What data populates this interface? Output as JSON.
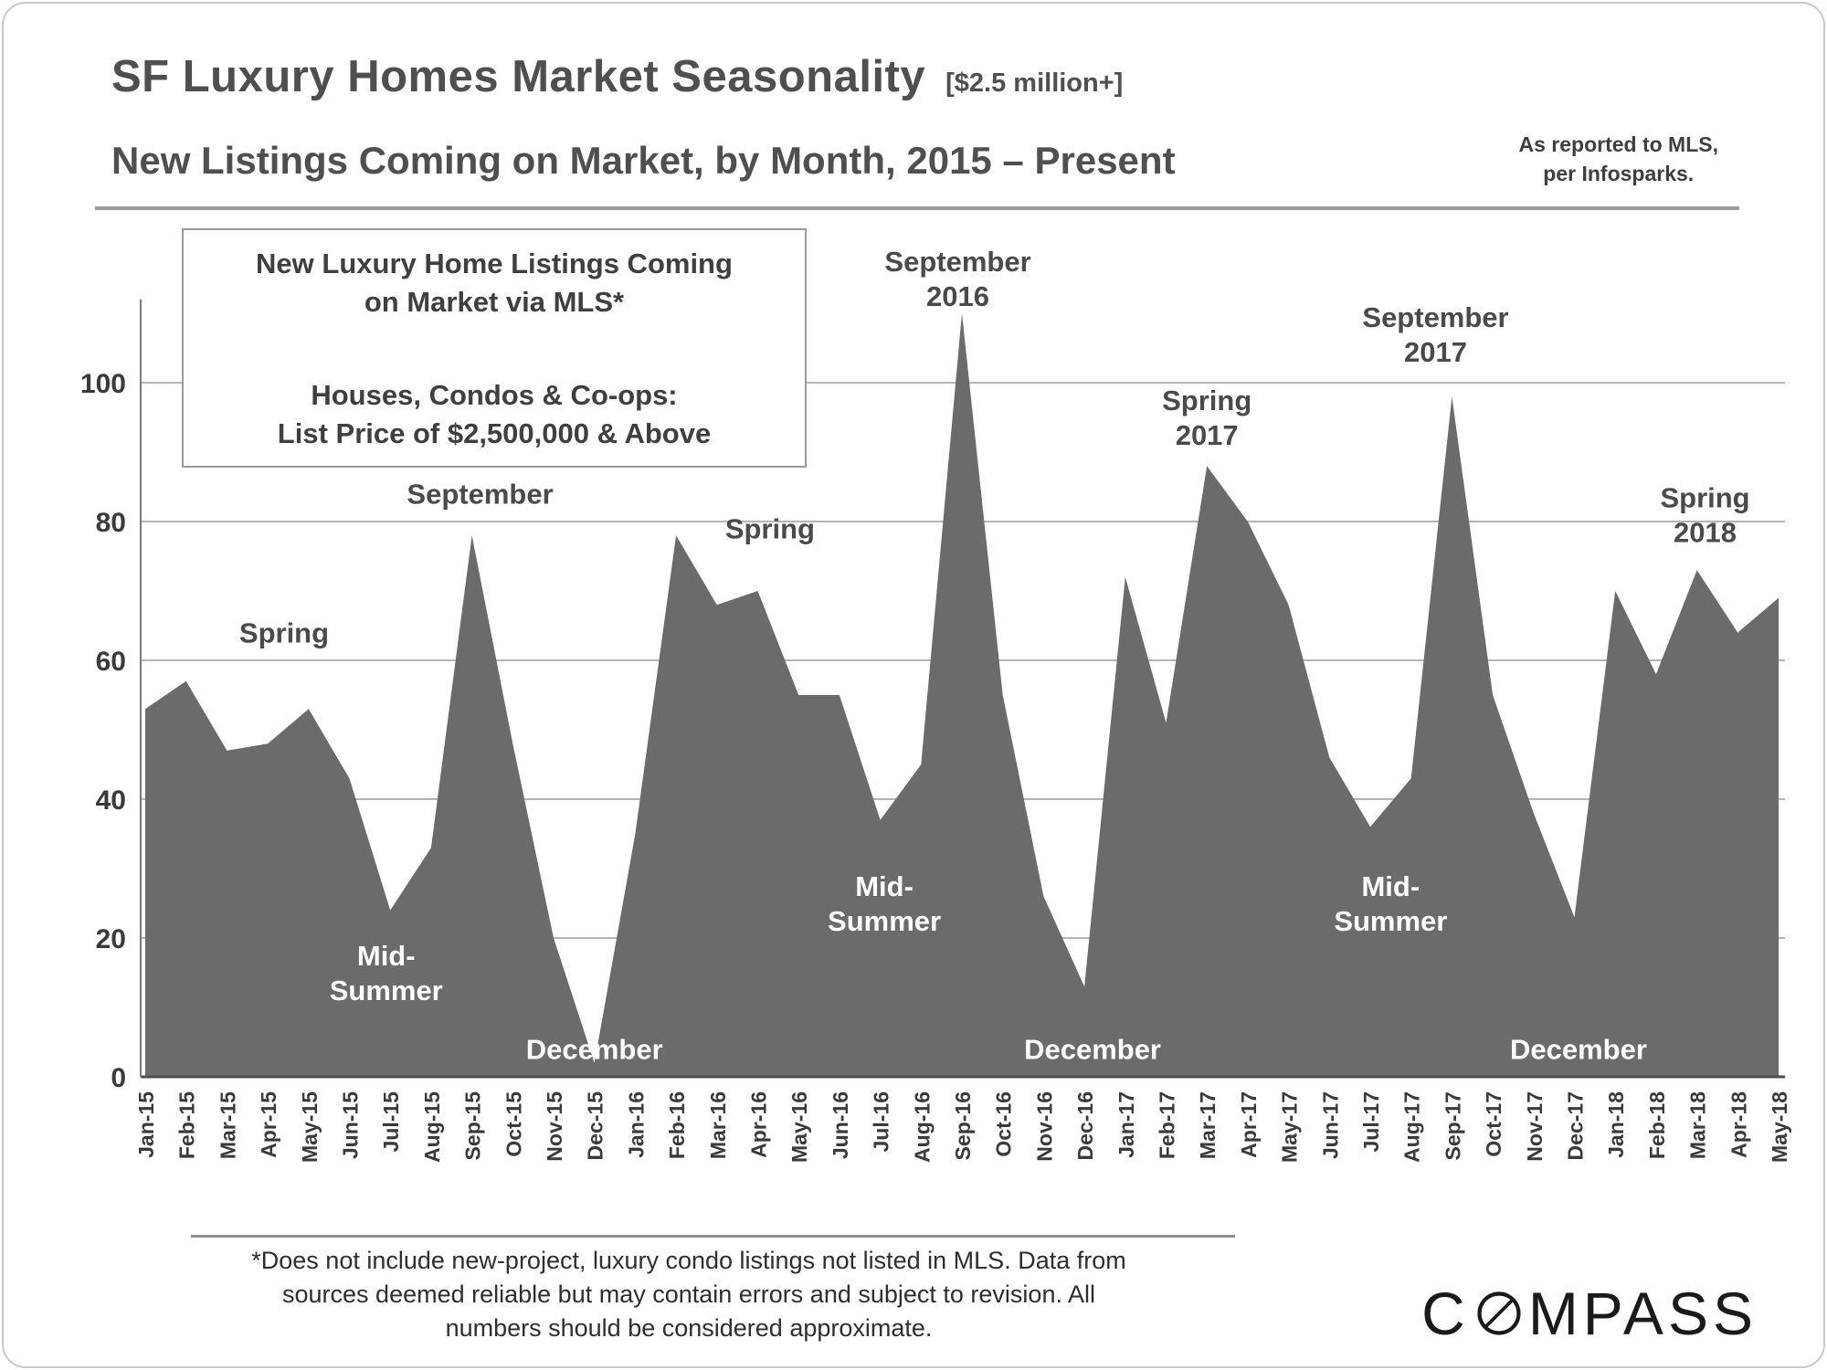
{
  "header": {
    "title": "SF Luxury Homes Market Seasonality",
    "price_tag": "[$2.5 million+]",
    "subtitle": "New Listings Coming on Market, by Month, 2015 – Present",
    "source_note": {
      "line1": "As reported to MLS,",
      "line2": "per Infosparks."
    }
  },
  "infobox": {
    "line1": "New Luxury Home Listings Coming",
    "line2": "on Market via MLS*",
    "line3": "Houses, Condos & Co-ops:",
    "line4": "List Price of $2,500,000 & Above"
  },
  "footnote": {
    "line1": "*Does not include new-project, luxury condo listings not listed in MLS. Data from",
    "line2": "sources deemed reliable but may contain errors and subject to revision.  All",
    "line3": "numbers should be considered approximate."
  },
  "logo": {
    "part1": "C",
    "part2": "MPASS"
  },
  "chart_data": {
    "type": "area",
    "title": "SF Luxury Homes Market Seasonality [$2.5 million+]",
    "subtitle": "New Listings Coming on Market, by Month, 2015 – Present",
    "xlabel": "",
    "ylabel": "",
    "ylim": [
      0,
      115
    ],
    "yticks": [
      0,
      20,
      40,
      60,
      80,
      100
    ],
    "grid": true,
    "fill_color": "#6b6b6b",
    "axis_color": "#4d4d4d",
    "gridline_color": "#b5b5b5",
    "categories": [
      "Jan-15",
      "Feb-15",
      "Mar-15",
      "Apr-15",
      "May-15",
      "Jun-15",
      "Jul-15",
      "Aug-15",
      "Sep-15",
      "Oct-15",
      "Nov-15",
      "Dec-15",
      "Jan-16",
      "Feb-16",
      "Mar-16",
      "Apr-16",
      "May-16",
      "Jun-16",
      "Jul-16",
      "Aug-16",
      "Sep-16",
      "Oct-16",
      "Nov-16",
      "Dec-16",
      "Jan-17",
      "Feb-17",
      "Mar-17",
      "Apr-17",
      "May-17",
      "Jun-17",
      "Jul-17",
      "Aug-17",
      "Sep-17",
      "Oct-17",
      "Nov-17",
      "Dec-17",
      "Jan-18",
      "Feb-18",
      "Mar-18",
      "Apr-18",
      "May-18"
    ],
    "values": [
      53,
      57,
      47,
      48,
      53,
      43,
      24,
      33,
      78,
      48,
      20,
      2,
      35,
      78,
      68,
      70,
      55,
      55,
      37,
      45,
      110,
      55,
      26,
      13,
      72,
      51,
      88,
      80,
      68,
      46,
      36,
      43,
      98,
      55,
      38,
      23,
      70,
      58,
      73,
      64,
      69
    ],
    "annotations": [
      {
        "id": "spring-2015",
        "lines": [
          "Spring"
        ],
        "index": 3.4,
        "value": 64,
        "tone": "dark"
      },
      {
        "id": "september-2015",
        "lines": [
          "September"
        ],
        "index": 8.2,
        "value": 84,
        "tone": "dark"
      },
      {
        "id": "spring-2016",
        "lines": [
          "Spring"
        ],
        "index": 15.3,
        "value": 79,
        "tone": "dark"
      },
      {
        "id": "september-2016",
        "lines": [
          "September",
          "2016"
        ],
        "index": 19.9,
        "value": 115,
        "tone": "dark"
      },
      {
        "id": "spring-2017",
        "lines": [
          "Spring",
          "2017"
        ],
        "index": 26.0,
        "value": 95,
        "tone": "dark"
      },
      {
        "id": "september-2017",
        "lines": [
          "September",
          "2017"
        ],
        "index": 31.6,
        "value": 107,
        "tone": "dark"
      },
      {
        "id": "spring-2018",
        "lines": [
          "Spring",
          "2018"
        ],
        "index": 38.2,
        "value": 81,
        "tone": "dark"
      },
      {
        "id": "mid-summer-2015",
        "lines": [
          "Mid-",
          "Summer"
        ],
        "index": 5.9,
        "value": 15,
        "tone": "light"
      },
      {
        "id": "mid-summer-2016",
        "lines": [
          "Mid-",
          "Summer"
        ],
        "index": 18.1,
        "value": 25,
        "tone": "light"
      },
      {
        "id": "mid-summer-2017",
        "lines": [
          "Mid-",
          "Summer"
        ],
        "index": 30.5,
        "value": 25,
        "tone": "light"
      },
      {
        "id": "december-2015",
        "lines": [
          "December"
        ],
        "index": 11.0,
        "value": 4,
        "tone": "light"
      },
      {
        "id": "december-2016",
        "lines": [
          "December"
        ],
        "index": 23.2,
        "value": 4,
        "tone": "light"
      },
      {
        "id": "december-2017",
        "lines": [
          "December"
        ],
        "index": 35.1,
        "value": 4,
        "tone": "light"
      }
    ]
  }
}
